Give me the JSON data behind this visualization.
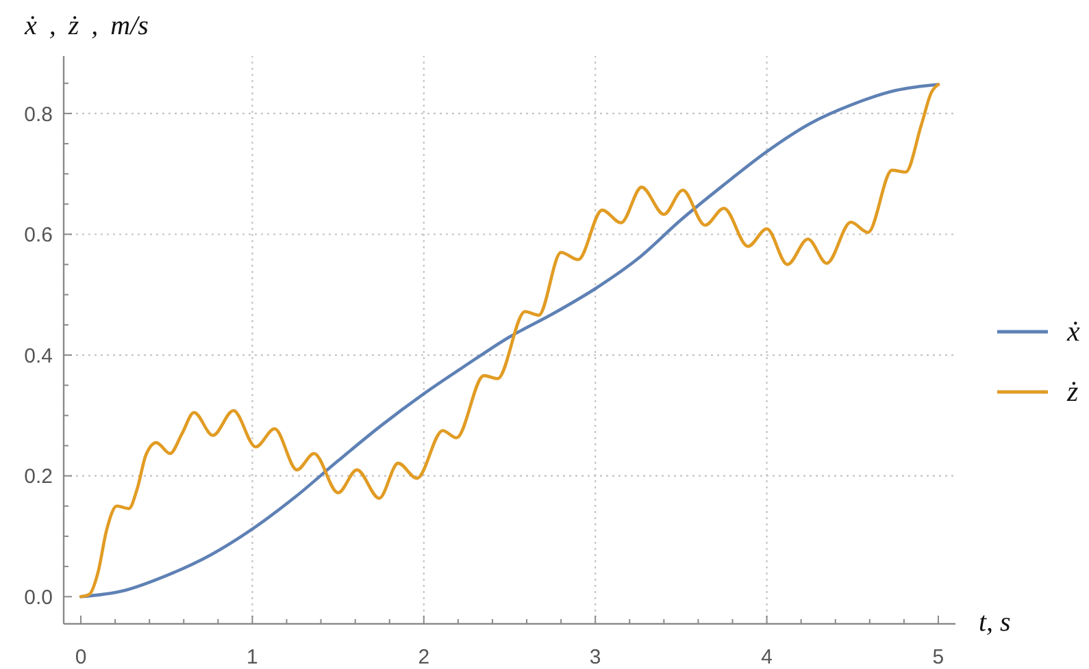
{
  "chart_data": {
    "type": "line",
    "ylabel": "ẋ , ż , m/s",
    "xlabel": "t, s",
    "xlim": [
      -0.1,
      5.1
    ],
    "ylim": [
      -0.045,
      0.895
    ],
    "xticks": [
      0,
      {
        "value": 0.2,
        "label": null
      },
      {
        "value": 0.4,
        "label": null
      },
      {
        "value": 0.6,
        "label": null
      },
      {
        "value": 0.8,
        "label": null
      },
      1,
      {
        "value": 1.2,
        "label": null
      },
      {
        "value": 1.4,
        "label": null
      },
      {
        "value": 1.6,
        "label": null
      },
      {
        "value": 1.8,
        "label": null
      },
      2,
      {
        "value": 2.2,
        "label": null
      },
      {
        "value": 2.4,
        "label": null
      },
      {
        "value": 2.6,
        "label": null
      },
      {
        "value": 2.8,
        "label": null
      },
      3,
      {
        "value": 3.2,
        "label": null
      },
      {
        "value": 3.4,
        "label": null
      },
      {
        "value": 3.6,
        "label": null
      },
      {
        "value": 3.8,
        "label": null
      },
      4,
      {
        "value": 4.2,
        "label": null
      },
      {
        "value": 4.4,
        "label": null
      },
      {
        "value": 4.6,
        "label": null
      },
      {
        "value": 4.8,
        "label": null
      },
      5
    ],
    "yticks": [
      {
        "value": 0,
        "label": "0.0"
      },
      {
        "value": 0.05,
        "label": null
      },
      {
        "value": 0.1,
        "label": null
      },
      {
        "value": 0.15,
        "label": null
      },
      0.2,
      {
        "value": 0.25,
        "label": null
      },
      {
        "value": 0.3,
        "label": null
      },
      {
        "value": 0.35,
        "label": null
      },
      0.4,
      {
        "value": 0.45,
        "label": null
      },
      {
        "value": 0.5,
        "label": null
      },
      {
        "value": 0.55,
        "label": null
      },
      0.6,
      {
        "value": 0.65,
        "label": null
      },
      {
        "value": 0.7,
        "label": null
      },
      {
        "value": 0.75,
        "label": null
      },
      0.8,
      {
        "value": 0.85,
        "label": null
      }
    ],
    "grid": true,
    "legend": "right",
    "series": [
      {
        "name": "ẋ",
        "color": "#5e81b5",
        "x": [
          0,
          0.25,
          0.5,
          0.75,
          1,
          1.25,
          1.5,
          1.75,
          2,
          2.25,
          2.5,
          2.75,
          3,
          3.25,
          3.5,
          3.75,
          4,
          4.25,
          4.5,
          4.75,
          5
        ],
        "values": [
          0,
          0.01,
          0.035,
          0.068,
          0.112,
          0.165,
          0.225,
          0.283,
          0.336,
          0.384,
          0.43,
          0.468,
          0.51,
          0.56,
          0.624,
          0.682,
          0.737,
          0.783,
          0.815,
          0.838,
          0.848
        ]
      },
      {
        "name": "ż",
        "color": "#e19c24",
        "x": [
          0,
          0.05,
          0.1,
          0.15,
          0.21,
          0.28,
          0.33,
          0.38,
          0.44,
          0.52,
          0.59,
          0.66,
          0.77,
          0.89,
          1.02,
          1.13,
          1.26,
          1.36,
          1.5,
          1.61,
          1.74,
          1.85,
          1.96,
          2.11,
          2.19,
          2.35,
          2.43,
          2.59,
          2.67,
          2.8,
          2.9,
          3.04,
          3.15,
          3.27,
          3.4,
          3.51,
          3.64,
          3.75,
          3.89,
          4,
          4.12,
          4.24,
          4.35,
          4.49,
          4.59,
          4.73,
          4.81,
          4.9,
          4.96,
          5
        ],
        "values": [
          0,
          0.004,
          0.04,
          0.11,
          0.15,
          0.146,
          0.18,
          0.235,
          0.255,
          0.237,
          0.27,
          0.305,
          0.267,
          0.308,
          0.248,
          0.278,
          0.21,
          0.237,
          0.172,
          0.21,
          0.163,
          0.221,
          0.196,
          0.275,
          0.263,
          0.366,
          0.361,
          0.472,
          0.466,
          0.57,
          0.558,
          0.64,
          0.619,
          0.678,
          0.633,
          0.673,
          0.615,
          0.643,
          0.58,
          0.609,
          0.55,
          0.592,
          0.552,
          0.62,
          0.603,
          0.706,
          0.703,
          0.78,
          0.835,
          0.848
        ]
      }
    ]
  }
}
